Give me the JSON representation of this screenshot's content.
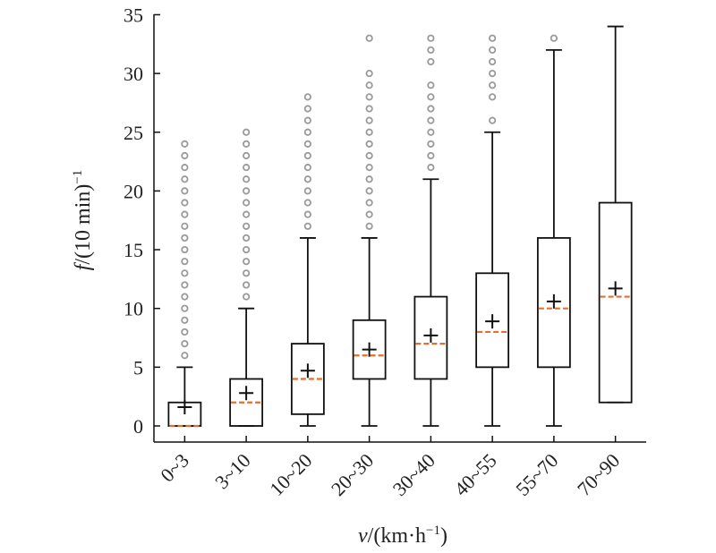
{
  "chart_data": {
    "type": "box",
    "xlabel_var": "v",
    "xlabel_rest": "/(km·h",
    "xlabel_sup": "−1",
    "xlabel_close": ")",
    "ylabel_var": "f",
    "ylabel_rest": "/(10 min)",
    "ylabel_sup": "−1",
    "ylim": [
      0,
      35
    ],
    "yticks": [
      0,
      5,
      10,
      15,
      20,
      25,
      30,
      35
    ],
    "ytick_labels": [
      "0",
      "5",
      "10",
      "15",
      "20",
      "25",
      "30",
      "35"
    ],
    "categories": [
      "0~3",
      "3~10",
      "10~20",
      "20~30",
      "30~40",
      "40~55",
      "55~70",
      "70~90"
    ],
    "boxes": [
      {
        "whisker_low": 0,
        "q1": 0,
        "median": 0,
        "q3": 2,
        "whisker_high": 5,
        "mean": 1.6,
        "outliers": [
          6,
          7,
          8,
          9,
          10,
          11,
          12,
          13,
          14,
          15,
          16,
          17,
          18,
          19,
          20,
          21,
          22,
          23,
          24
        ]
      },
      {
        "whisker_low": 0,
        "q1": 0,
        "median": 2,
        "q3": 4,
        "whisker_high": 10,
        "mean": 2.8,
        "outliers": [
          11,
          12,
          13,
          14,
          15,
          16,
          17,
          18,
          19,
          20,
          21,
          22,
          23,
          24,
          25
        ]
      },
      {
        "whisker_low": 0,
        "q1": 1,
        "median": 4,
        "q3": 7,
        "whisker_high": 16,
        "mean": 4.7,
        "outliers": [
          17,
          18,
          19,
          20,
          21,
          22,
          23,
          24,
          25,
          26,
          27,
          28
        ]
      },
      {
        "whisker_low": 0,
        "q1": 4,
        "median": 6,
        "q3": 9,
        "whisker_high": 16,
        "mean": 6.5,
        "outliers": [
          17,
          18,
          19,
          20,
          21,
          22,
          23,
          24,
          25,
          26,
          27,
          28,
          29,
          30,
          33
        ]
      },
      {
        "whisker_low": 0,
        "q1": 4,
        "median": 7,
        "q3": 11,
        "whisker_high": 21,
        "mean": 7.7,
        "outliers": [
          22,
          23,
          24,
          25,
          26,
          27,
          28,
          29,
          31,
          32,
          33
        ]
      },
      {
        "whisker_low": 0,
        "q1": 5,
        "median": 8,
        "q3": 13,
        "whisker_high": 25,
        "mean": 8.9,
        "outliers": [
          26,
          28,
          29,
          30,
          31,
          32,
          33
        ]
      },
      {
        "whisker_low": 0,
        "q1": 5,
        "median": 10,
        "q3": 16,
        "whisker_high": 32,
        "mean": 10.6,
        "outliers": [
          33
        ]
      },
      {
        "whisker_low": 2,
        "q1": 2,
        "median": 11,
        "q3": 19,
        "whisker_high": 34,
        "mean": 11.7,
        "outliers": []
      }
    ],
    "colors": {
      "box": "#111111",
      "median": "#e07030",
      "outlier": "#9a9a9a",
      "mean": "#111111"
    },
    "grid": false,
    "legend": "none"
  }
}
